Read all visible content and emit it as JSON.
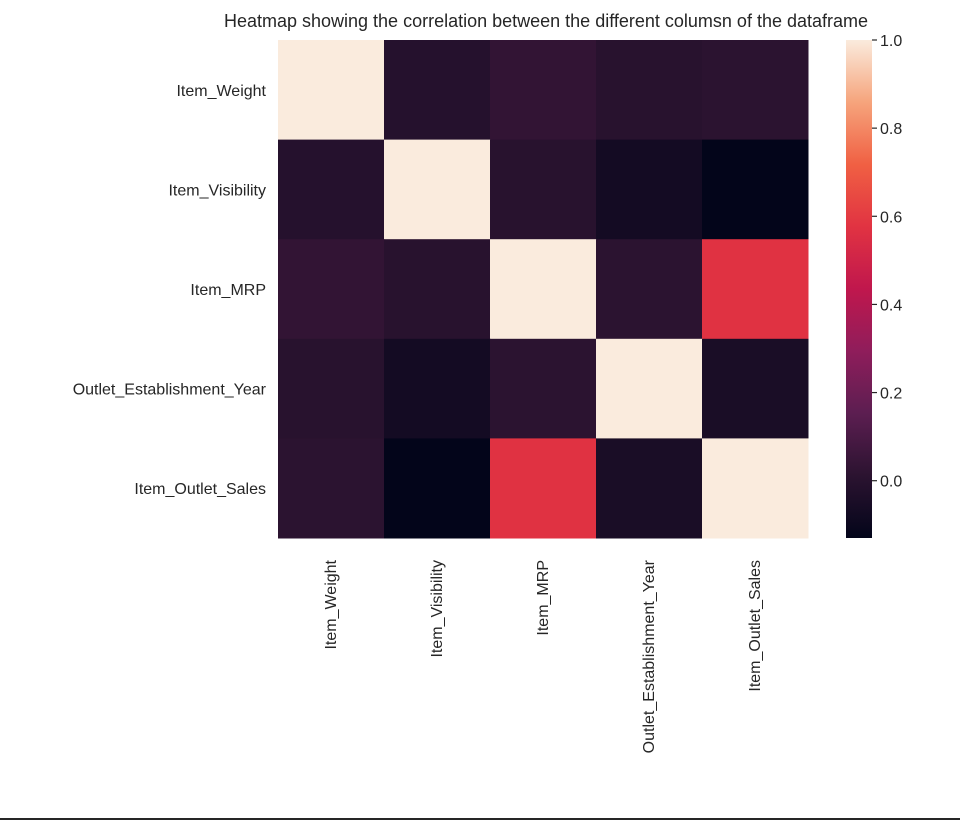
{
  "chart_data": {
    "type": "heatmap",
    "title": "Heatmap showing the correlation between the different columsn of the dataframe",
    "rows": [
      "Item_Weight",
      "Item_Visibility",
      "Item_MRP",
      "Outlet_Establishment_Year",
      "Item_Outlet_Sales"
    ],
    "columns": [
      "Item_Weight",
      "Item_Visibility",
      "Item_MRP",
      "Outlet_Establishment_Year",
      "Item_Outlet_Sales"
    ],
    "values": [
      [
        1.0,
        -0.01,
        0.03,
        0.0,
        0.01
      ],
      [
        -0.01,
        1.0,
        0.0,
        -0.07,
        -0.13
      ],
      [
        0.03,
        0.0,
        1.0,
        0.01,
        0.57
      ],
      [
        0.0,
        -0.07,
        0.01,
        1.0,
        -0.05
      ],
      [
        0.01,
        -0.13,
        0.57,
        -0.05,
        1.0
      ]
    ],
    "colorbar": {
      "min": -0.13,
      "max": 1.0,
      "ticks": [
        0.0,
        0.2,
        0.4,
        0.6,
        0.8,
        1.0
      ],
      "tick_labels": [
        "0.0",
        "0.2",
        "0.4",
        "0.6",
        "0.8",
        "1.0"
      ],
      "colormap": "rocket",
      "placement": "right"
    },
    "grid": false
  }
}
